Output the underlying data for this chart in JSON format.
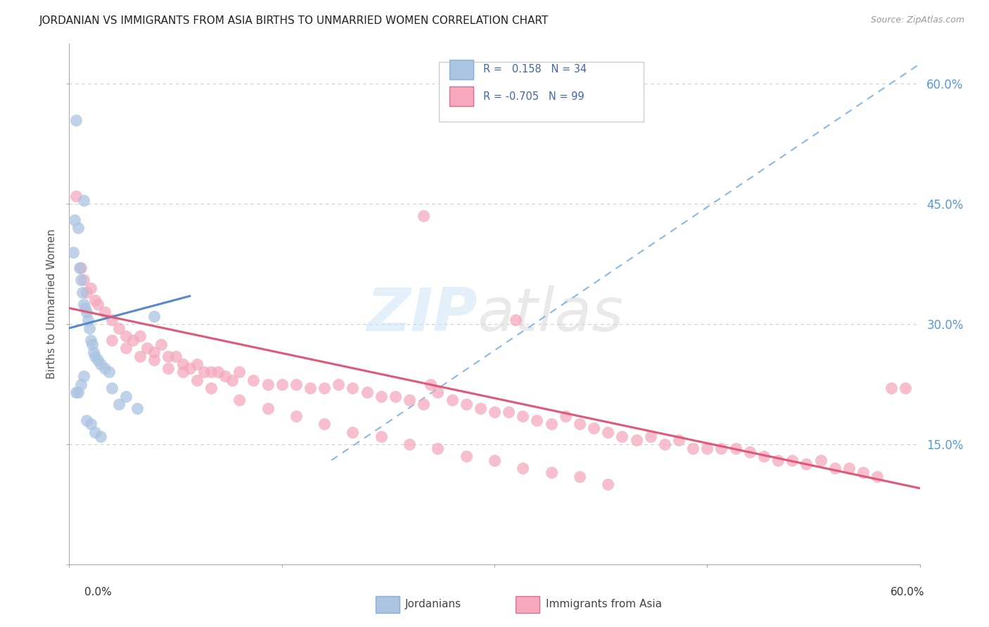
{
  "title": "JORDANIAN VS IMMIGRANTS FROM ASIA BIRTHS TO UNMARRIED WOMEN CORRELATION CHART",
  "source": "Source: ZipAtlas.com",
  "ylabel": "Births to Unmarried Women",
  "blue_color": "#aac4e2",
  "pink_color": "#f5a8be",
  "blue_line_color": "#5588cc",
  "pink_line_color": "#e05878",
  "dashed_line_color": "#88b8e8",
  "xlim": [
    0.0,
    0.6
  ],
  "ylim": [
    0.0,
    0.65
  ],
  "blue_line_x": [
    0.0,
    0.085
  ],
  "blue_line_y": [
    0.295,
    0.335
  ],
  "pink_line_x": [
    0.0,
    0.6
  ],
  "pink_line_y": [
    0.32,
    0.095
  ],
  "dash_line_x": [
    0.185,
    0.6
  ],
  "dash_line_y": [
    0.13,
    0.625
  ],
  "jord_x": [
    0.005,
    0.003,
    0.004,
    0.006,
    0.007,
    0.008,
    0.009,
    0.01,
    0.011,
    0.012,
    0.013,
    0.014,
    0.015,
    0.016,
    0.017,
    0.018,
    0.02,
    0.022,
    0.025,
    0.028,
    0.03,
    0.035,
    0.04,
    0.048,
    0.005,
    0.006,
    0.008,
    0.01,
    0.012,
    0.015,
    0.018,
    0.022,
    0.06,
    0.01
  ],
  "jord_y": [
    0.555,
    0.39,
    0.43,
    0.42,
    0.37,
    0.355,
    0.34,
    0.325,
    0.32,
    0.315,
    0.305,
    0.295,
    0.28,
    0.275,
    0.265,
    0.26,
    0.255,
    0.25,
    0.245,
    0.24,
    0.22,
    0.2,
    0.21,
    0.195,
    0.215,
    0.215,
    0.225,
    0.235,
    0.18,
    0.175,
    0.165,
    0.16,
    0.31,
    0.455
  ],
  "imm_x": [
    0.005,
    0.008,
    0.01,
    0.012,
    0.015,
    0.018,
    0.02,
    0.025,
    0.03,
    0.035,
    0.04,
    0.045,
    0.05,
    0.055,
    0.06,
    0.065,
    0.07,
    0.075,
    0.08,
    0.085,
    0.09,
    0.095,
    0.1,
    0.105,
    0.11,
    0.115,
    0.12,
    0.13,
    0.14,
    0.15,
    0.16,
    0.17,
    0.18,
    0.19,
    0.2,
    0.21,
    0.22,
    0.23,
    0.24,
    0.25,
    0.255,
    0.26,
    0.27,
    0.28,
    0.29,
    0.3,
    0.31,
    0.315,
    0.32,
    0.33,
    0.34,
    0.35,
    0.36,
    0.37,
    0.38,
    0.39,
    0.4,
    0.41,
    0.42,
    0.43,
    0.44,
    0.45,
    0.46,
    0.47,
    0.48,
    0.49,
    0.5,
    0.51,
    0.52,
    0.53,
    0.54,
    0.55,
    0.56,
    0.57,
    0.58,
    0.03,
    0.04,
    0.05,
    0.06,
    0.07,
    0.08,
    0.09,
    0.1,
    0.12,
    0.14,
    0.16,
    0.18,
    0.2,
    0.22,
    0.24,
    0.26,
    0.28,
    0.3,
    0.32,
    0.34,
    0.36,
    0.38,
    0.59,
    0.25
  ],
  "imm_y": [
    0.46,
    0.37,
    0.355,
    0.34,
    0.345,
    0.33,
    0.325,
    0.315,
    0.305,
    0.295,
    0.285,
    0.28,
    0.285,
    0.27,
    0.265,
    0.275,
    0.26,
    0.26,
    0.25,
    0.245,
    0.25,
    0.24,
    0.24,
    0.24,
    0.235,
    0.23,
    0.24,
    0.23,
    0.225,
    0.225,
    0.225,
    0.22,
    0.22,
    0.225,
    0.22,
    0.215,
    0.21,
    0.21,
    0.205,
    0.2,
    0.225,
    0.215,
    0.205,
    0.2,
    0.195,
    0.19,
    0.19,
    0.305,
    0.185,
    0.18,
    0.175,
    0.185,
    0.175,
    0.17,
    0.165,
    0.16,
    0.155,
    0.16,
    0.15,
    0.155,
    0.145,
    0.145,
    0.145,
    0.145,
    0.14,
    0.135,
    0.13,
    0.13,
    0.125,
    0.13,
    0.12,
    0.12,
    0.115,
    0.11,
    0.22,
    0.28,
    0.27,
    0.26,
    0.255,
    0.245,
    0.24,
    0.23,
    0.22,
    0.205,
    0.195,
    0.185,
    0.175,
    0.165,
    0.16,
    0.15,
    0.145,
    0.135,
    0.13,
    0.12,
    0.115,
    0.11,
    0.1,
    0.22,
    0.435
  ]
}
